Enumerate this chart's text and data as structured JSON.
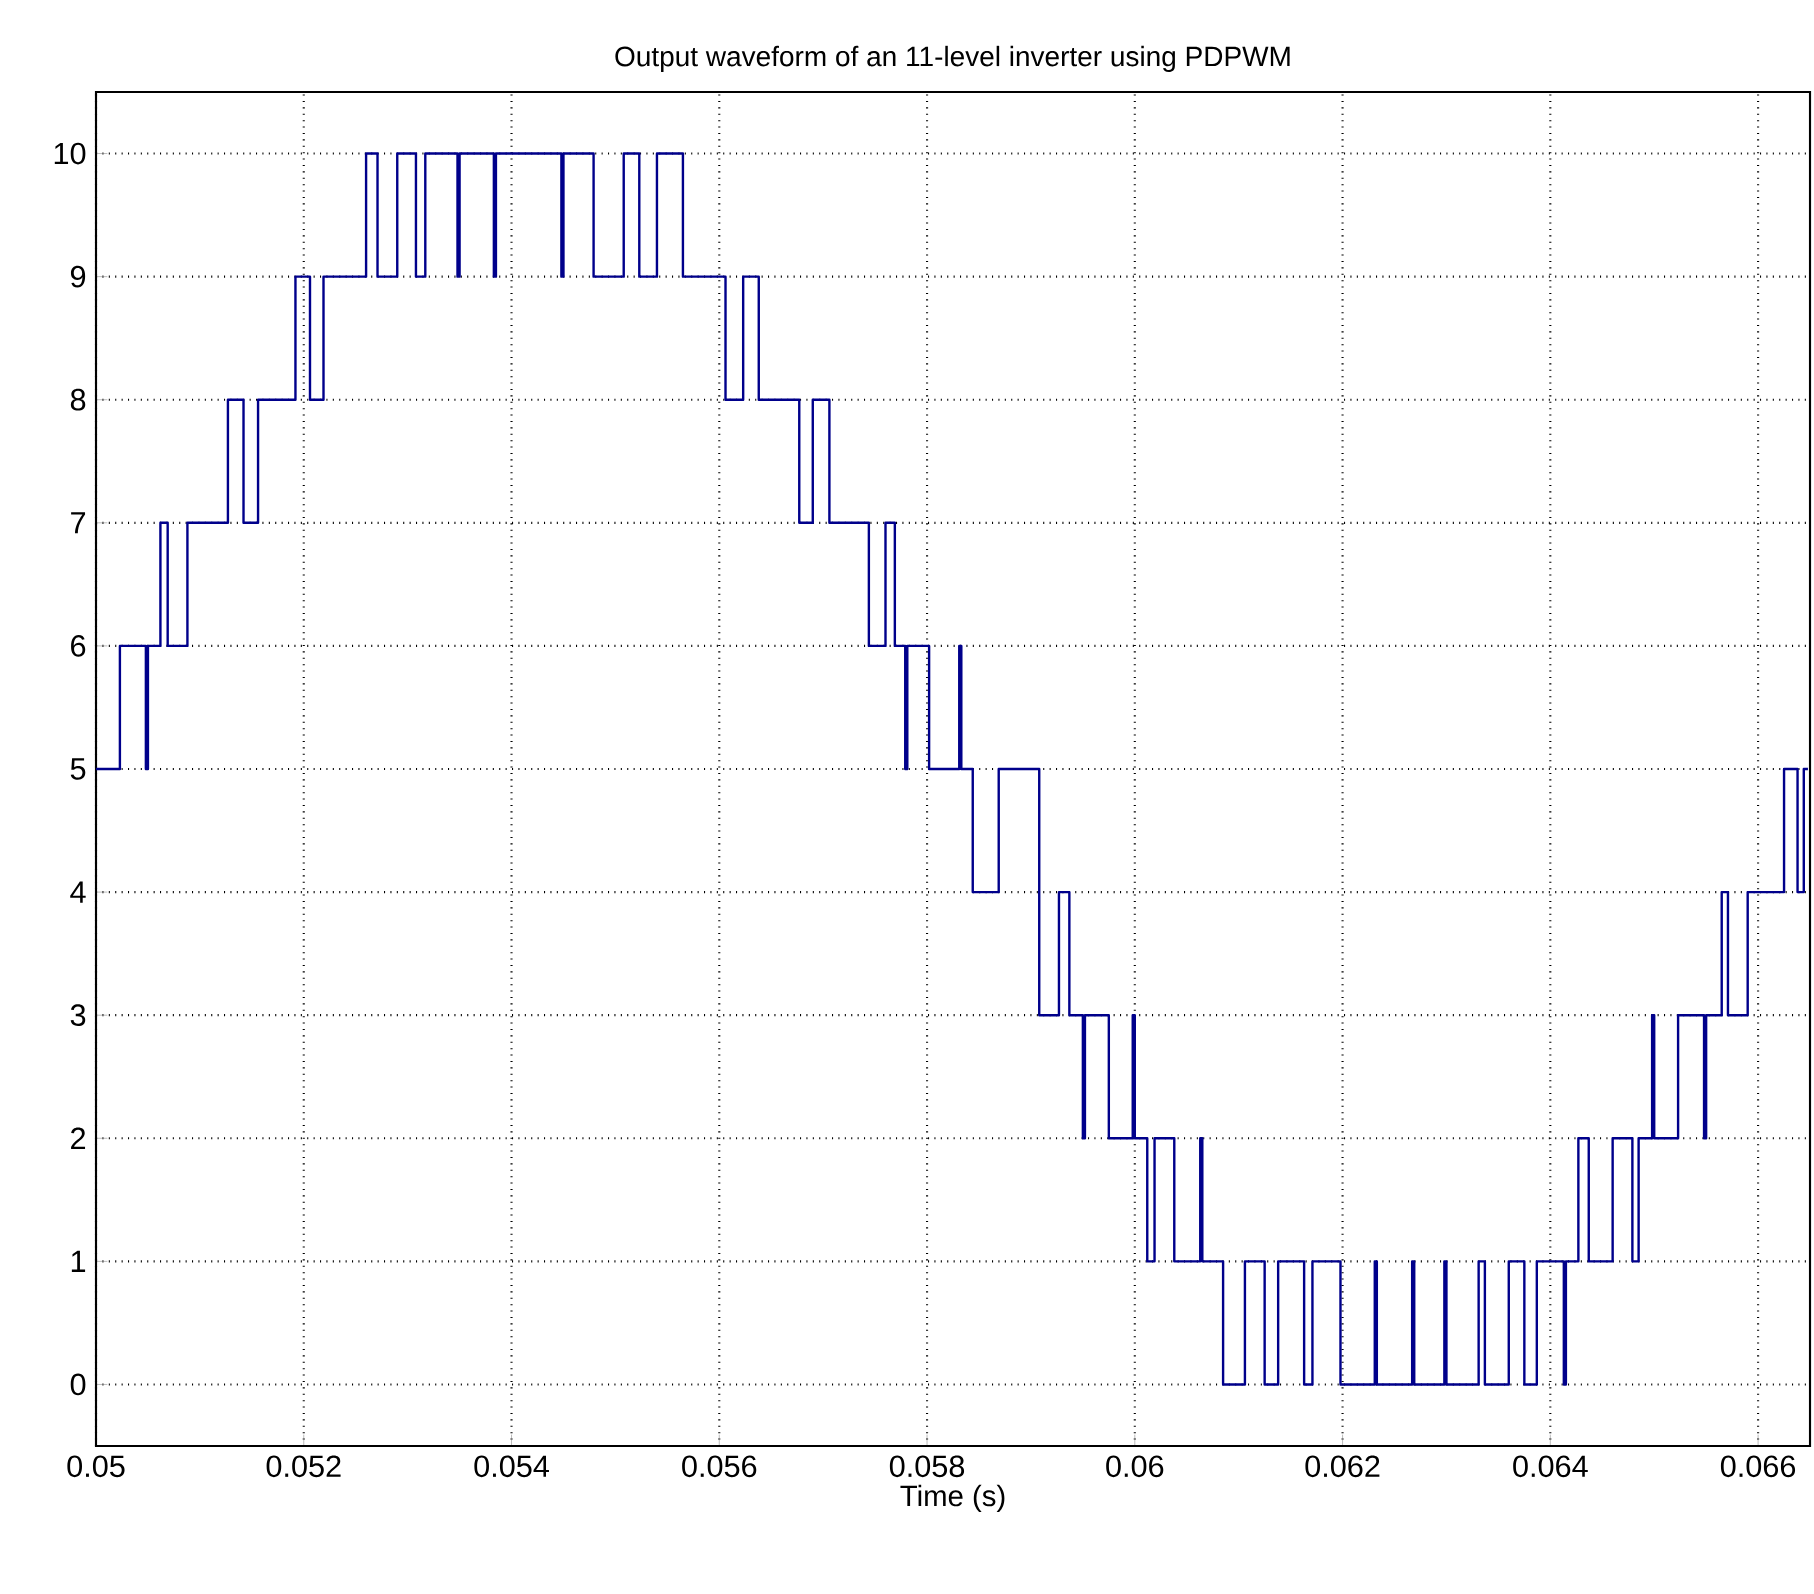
{
  "chart_data": {
    "type": "step",
    "title": "Output waveform of an 11-level inverter using PDPWM",
    "xlabel": "Time (s)",
    "x": [
      0.05,
      0.05023,
      0.05048,
      0.0505,
      0.05062,
      0.05069,
      0.05088,
      0.05127,
      0.05142,
      0.05156,
      0.05192,
      0.05206,
      0.05219,
      0.0526,
      0.05271,
      0.0529,
      0.05308,
      0.05317,
      0.05348,
      0.0535,
      0.05383,
      0.05385,
      0.05448,
      0.0545,
      0.05479,
      0.05508,
      0.05523,
      0.0554,
      0.05565,
      0.05606,
      0.05623,
      0.05638,
      0.05677,
      0.0569,
      0.05706,
      0.05744,
      0.0576,
      0.05769,
      0.05779,
      0.05781,
      0.05802,
      0.05831,
      0.05833,
      0.05844,
      0.05869,
      0.05908,
      0.05927,
      0.05937,
      0.0595,
      0.05952,
      0.05975,
      0.05998,
      0.06,
      0.06012,
      0.06019,
      0.06038,
      0.06063,
      0.06065,
      0.06085,
      0.06106,
      0.06125,
      0.06138,
      0.06163,
      0.06171,
      0.06198,
      0.06231,
      0.06233,
      0.06267,
      0.06269,
      0.06298,
      0.063,
      0.06331,
      0.06337,
      0.0636,
      0.06375,
      0.06387,
      0.06413,
      0.06415,
      0.06427,
      0.06437,
      0.0646,
      0.06479,
      0.06485,
      0.06498,
      0.065,
      0.06523,
      0.06548,
      0.0655,
      0.06565,
      0.06571,
      0.0659,
      0.06625,
      0.06638,
      0.06644,
      0.06648
    ],
    "series": [
      {
        "color": "#00008b",
        "values": [
          5,
          6,
          5,
          6,
          7,
          6,
          7,
          8,
          7,
          8,
          9,
          8,
          9,
          10,
          9,
          10,
          9,
          10,
          9,
          10,
          9,
          10,
          9,
          10,
          9,
          10,
          9,
          10,
          9,
          8,
          9,
          8,
          7,
          8,
          7,
          6,
          7,
          6,
          5,
          6,
          5,
          6,
          5,
          4,
          5,
          3,
          4,
          3,
          2,
          3,
          2,
          3,
          2,
          1,
          2,
          1,
          2,
          1,
          0,
          1,
          0,
          1,
          0,
          1,
          0,
          1,
          0,
          1,
          0,
          1,
          0,
          1,
          0,
          1,
          0,
          1,
          0,
          1,
          2,
          1,
          2,
          1,
          2,
          3,
          2,
          3,
          2,
          3,
          4,
          3,
          4,
          5,
          4,
          5,
          5
        ]
      }
    ],
    "xlim": [
      0.05,
      0.0665
    ],
    "ylim": [
      -0.5,
      10.5
    ],
    "xticks": [
      0.05,
      0.052,
      0.054,
      0.056,
      0.058,
      0.06,
      0.062,
      0.064,
      0.066
    ],
    "yticks": [
      0,
      1,
      2,
      3,
      4,
      5,
      6,
      7,
      8,
      9,
      10
    ],
    "grid": true
  }
}
